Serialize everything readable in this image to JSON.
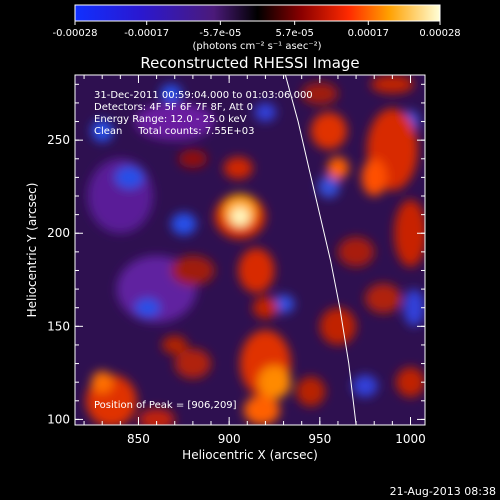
{
  "colorbar": {
    "ticks": [
      "-0.00028",
      "-0.00017",
      "-5.7e-05",
      "5.7e-05",
      "0.00017",
      "0.00028"
    ],
    "unit_label": "(photons cm⁻² s⁻¹ asec⁻²)",
    "range": [
      -0.00028,
      0.00028
    ]
  },
  "chart_data": {
    "type": "heatmap",
    "title": "Reconstructed RHESSI Image",
    "xlabel": "Heliocentric X (arcsec)",
    "ylabel": "Heliocentric Y (arcsec)",
    "xlim": [
      815,
      1008
    ],
    "ylim": [
      97,
      285
    ],
    "xticks": [
      "850",
      "900",
      "950",
      "1000"
    ],
    "yticks": [
      "100",
      "150",
      "200",
      "250"
    ],
    "info_lines": [
      "31-Dec-2011 00:59:04.000 to 01:03:06.000",
      "Detectors: 4F 5F 6F 7F 8F, Att 0",
      "Energy Range: 12.0 - 25.0 keV",
      "Clean     Total counts: 7.55E+03"
    ],
    "peak_label": "Position of Peak = [906,209]",
    "peak": [
      906,
      209
    ],
    "limb_curve_x": [
      931,
      938,
      944,
      950,
      956,
      961,
      966,
      970
    ],
    "limb_curve_y": [
      285,
      260,
      235,
      210,
      185,
      160,
      130,
      97
    ]
  },
  "footer": {
    "timestamp": "21-Aug-2013 08:38"
  }
}
